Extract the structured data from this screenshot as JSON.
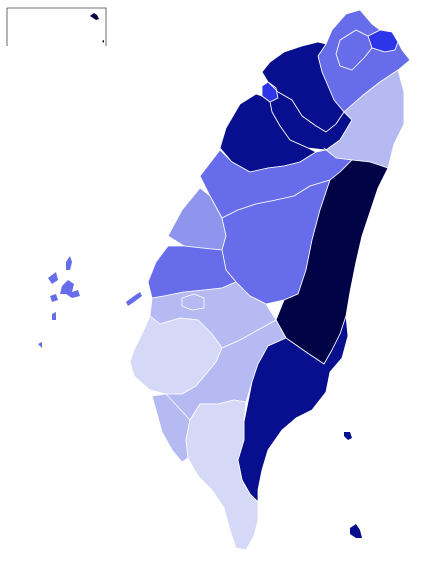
{
  "map": {
    "shade_scale": {
      "1": "#d5d9f7",
      "2": "#b5baf2",
      "3": "#8f95ec",
      "4": "#676ceb",
      "5": "#2d35e8",
      "6": "#080f8e",
      "7": "#000346"
    },
    "regions": [
      {
        "id": "keelung",
        "shade": 5
      },
      {
        "id": "taipei-city",
        "shade": 4
      },
      {
        "id": "new-taipei",
        "shade": 4
      },
      {
        "id": "taoyuan",
        "shade": 6
      },
      {
        "id": "hsinchu-city",
        "shade": 5
      },
      {
        "id": "hsinchu-county",
        "shade": 6
      },
      {
        "id": "miaoli",
        "shade": 6
      },
      {
        "id": "yilan",
        "shade": 2
      },
      {
        "id": "taichung",
        "shade": 4
      },
      {
        "id": "changhua",
        "shade": 3
      },
      {
        "id": "nantou",
        "shade": 4
      },
      {
        "id": "hualien",
        "shade": 7
      },
      {
        "id": "yunlin",
        "shade": 4
      },
      {
        "id": "chiayi-county",
        "shade": 2
      },
      {
        "id": "chiayi-city",
        "shade": 2
      },
      {
        "id": "tainan",
        "shade": 1
      },
      {
        "id": "kaohsiung",
        "shade": 2
      },
      {
        "id": "taitung",
        "shade": 6
      },
      {
        "id": "pingtung-west",
        "shade": 2
      },
      {
        "id": "pingtung",
        "shade": 1
      },
      {
        "id": "penghu",
        "shade": 4
      },
      {
        "id": "green-island",
        "shade": 6
      },
      {
        "id": "orchid-island",
        "shade": 6
      },
      {
        "id": "matsu-inset",
        "shade": 7
      }
    ]
  }
}
